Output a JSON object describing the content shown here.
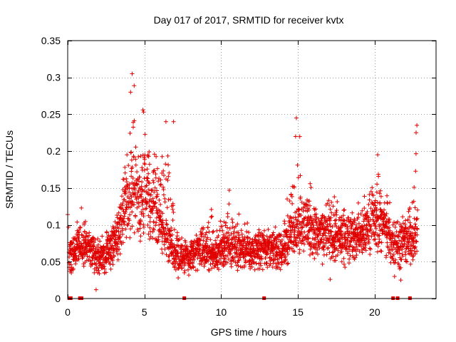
{
  "chart_data": {
    "type": "scatter",
    "title": "Day 017 of 2017, SRMTID for receiver kvtx",
    "xlabel": "GPS time / hours",
    "ylabel": "SRMTID / TECUs",
    "xlim": [
      0,
      24
    ],
    "ylim": [
      0,
      0.35
    ],
    "xticks": [
      0,
      5,
      10,
      15,
      20
    ],
    "xtick_labels": [
      "0",
      "5",
      "10",
      "15",
      "20"
    ],
    "yticks": [
      0,
      0.05,
      0.1,
      0.15,
      0.2,
      0.25,
      0.3,
      0.35
    ],
    "ytick_labels": [
      "0",
      "0.05",
      "0.1",
      "0.15",
      "0.2",
      "0.25",
      "0.3",
      "0.35"
    ],
    "grid": true,
    "marker": "plus",
    "color": "#e00000",
    "series": [
      {
        "name": "SRMTID",
        "envelope": {
          "hours": [
            0.0,
            0.5,
            1.0,
            1.5,
            2.0,
            2.5,
            3.0,
            3.5,
            4.0,
            4.3,
            4.6,
            5.0,
            5.5,
            6.0,
            6.5,
            7.0,
            7.5,
            8.0,
            8.5,
            9.0,
            9.5,
            10.0,
            10.5,
            11.0,
            11.5,
            12.0,
            12.5,
            13.0,
            13.5,
            14.0,
            14.5,
            15.0,
            15.5,
            16.0,
            16.5,
            17.0,
            17.5,
            18.0,
            18.5,
            19.0,
            19.5,
            20.0,
            20.5,
            21.0,
            21.5,
            22.0,
            22.5,
            22.8
          ],
          "typical": [
            0.055,
            0.06,
            0.07,
            0.065,
            0.05,
            0.06,
            0.065,
            0.1,
            0.13,
            0.15,
            0.12,
            0.14,
            0.12,
            0.1,
            0.08,
            0.05,
            0.05,
            0.055,
            0.06,
            0.06,
            0.055,
            0.065,
            0.07,
            0.065,
            0.06,
            0.06,
            0.065,
            0.07,
            0.06,
            0.06,
            0.08,
            0.1,
            0.1,
            0.09,
            0.08,
            0.08,
            0.08,
            0.075,
            0.08,
            0.08,
            0.09,
            0.1,
            0.1,
            0.075,
            0.07,
            0.075,
            0.08,
            0.085
          ],
          "peak": [
            0.075,
            0.1,
            0.13,
            0.1,
            0.08,
            0.09,
            0.11,
            0.16,
            0.28,
            0.305,
            0.2,
            0.255,
            0.23,
            0.19,
            0.24,
            0.12,
            0.08,
            0.09,
            0.1,
            0.12,
            0.14,
            0.11,
            0.15,
            0.12,
            0.11,
            0.1,
            0.1,
            0.09,
            0.1,
            0.1,
            0.16,
            0.24,
            0.17,
            0.15,
            0.12,
            0.16,
            0.14,
            0.12,
            0.13,
            0.13,
            0.15,
            0.19,
            0.16,
            0.14,
            0.12,
            0.11,
            0.19,
            0.235
          ]
        },
        "zero_values_at_hours": [
          0.1,
          0.2,
          0.8,
          0.9,
          7.6,
          12.8,
          21.2,
          21.5,
          22.3
        ],
        "outliers": [
          [
            0.0,
            0.114
          ],
          [
            0.05,
            0.097
          ],
          [
            4.2,
            0.305
          ],
          [
            4.1,
            0.28
          ],
          [
            4.9,
            0.256
          ],
          [
            4.95,
            0.253
          ],
          [
            6.4,
            0.24
          ],
          [
            6.9,
            0.24
          ],
          [
            14.9,
            0.245
          ],
          [
            14.85,
            0.22
          ],
          [
            20.2,
            0.195
          ],
          [
            22.75,
            0.235
          ],
          [
            22.7,
            0.225
          ],
          [
            7.2,
            0.028
          ],
          [
            1.85,
            0.012
          ],
          [
            17.1,
            0.026
          ],
          [
            21.3,
            0.03
          ],
          [
            21.7,
            0.025
          ]
        ]
      }
    ]
  }
}
